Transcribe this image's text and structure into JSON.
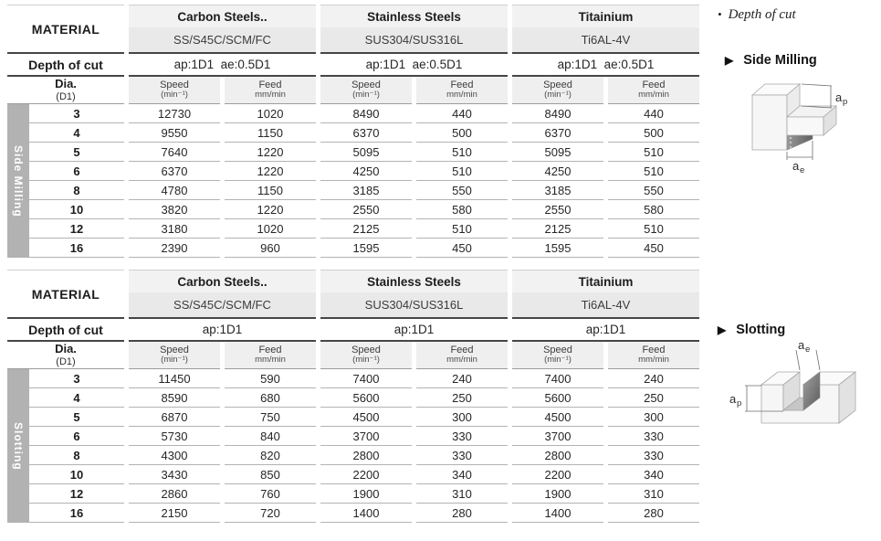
{
  "side_panel": {
    "note_bullet": "•",
    "note_text": "Depth of cut",
    "sections": [
      {
        "marker": "▶",
        "title": "Side Milling",
        "dims": {
          "ap_base": "a",
          "ap_sub": "p",
          "ae_base": "a",
          "ae_sub": "e"
        }
      },
      {
        "marker": "▶",
        "title": "Slotting",
        "dims": {
          "ap_base": "a",
          "ap_sub": "p",
          "ae_base": "a",
          "ae_sub": "e"
        }
      }
    ]
  },
  "tables": [
    {
      "section_label": "Side Milling",
      "material_label": "MATERIAL",
      "depth_label": "Depth of cut",
      "dia_label": "Dia.",
      "dia_sub": "(D1)",
      "speed_label": "Speed",
      "speed_unit": "(min⁻¹)",
      "feed_label": "Feed",
      "feed_unit": "mm/min",
      "groups": [
        {
          "name": "Carbon Steels..",
          "grade": "SS/S45C/SCM/FC",
          "depth": "ap:1D1  ae:0.5D1"
        },
        {
          "name": "Stainless Steels",
          "grade": "SUS304/SUS316L",
          "depth": "ap:1D1  ae:0.5D1"
        },
        {
          "name": "Titainium",
          "grade": "Ti6AL-4V",
          "depth": "ap:1D1  ae:0.5D1"
        }
      ],
      "rows": [
        {
          "dia": "3",
          "values": [
            "12730",
            "1020",
            "8490",
            "440",
            "8490",
            "440"
          ]
        },
        {
          "dia": "4",
          "values": [
            "9550",
            "1150",
            "6370",
            "500",
            "6370",
            "500"
          ]
        },
        {
          "dia": "5",
          "values": [
            "7640",
            "1220",
            "5095",
            "510",
            "5095",
            "510"
          ]
        },
        {
          "dia": "6",
          "values": [
            "6370",
            "1220",
            "4250",
            "510",
            "4250",
            "510"
          ]
        },
        {
          "dia": "8",
          "values": [
            "4780",
            "1150",
            "3185",
            "550",
            "3185",
            "550"
          ]
        },
        {
          "dia": "10",
          "values": [
            "3820",
            "1220",
            "2550",
            "580",
            "2550",
            "580"
          ]
        },
        {
          "dia": "12",
          "values": [
            "3180",
            "1020",
            "2125",
            "510",
            "2125",
            "510"
          ]
        },
        {
          "dia": "16",
          "values": [
            "2390",
            "960",
            "1595",
            "450",
            "1595",
            "450"
          ]
        }
      ]
    },
    {
      "section_label": "Slotting",
      "material_label": "MATERIAL",
      "depth_label": "Depth of cut",
      "dia_label": "Dia.",
      "dia_sub": "(D1)",
      "speed_label": "Speed",
      "speed_unit": "(min⁻¹)",
      "feed_label": "Feed",
      "feed_unit": "mm/min",
      "groups": [
        {
          "name": "Carbon Steels..",
          "grade": "SS/S45C/SCM/FC",
          "depth": "ap:1D1"
        },
        {
          "name": "Stainless Steels",
          "grade": "SUS304/SUS316L",
          "depth": "ap:1D1"
        },
        {
          "name": "Titainium",
          "grade": "Ti6AL-4V",
          "depth": "ap:1D1"
        }
      ],
      "rows": [
        {
          "dia": "3",
          "values": [
            "11450",
            "590",
            "7400",
            "240",
            "7400",
            "240"
          ]
        },
        {
          "dia": "4",
          "values": [
            "8590",
            "680",
            "5600",
            "250",
            "5600",
            "250"
          ]
        },
        {
          "dia": "5",
          "values": [
            "6870",
            "750",
            "4500",
            "300",
            "4500",
            "300"
          ]
        },
        {
          "dia": "6",
          "values": [
            "5730",
            "840",
            "3700",
            "330",
            "3700",
            "330"
          ]
        },
        {
          "dia": "8",
          "values": [
            "4300",
            "820",
            "2800",
            "330",
            "2800",
            "330"
          ]
        },
        {
          "dia": "10",
          "values": [
            "3430",
            "850",
            "2200",
            "340",
            "2200",
            "340"
          ]
        },
        {
          "dia": "12",
          "values": [
            "2860",
            "760",
            "1900",
            "310",
            "1900",
            "310"
          ]
        },
        {
          "dia": "16",
          "values": [
            "2150",
            "720",
            "1400",
            "280",
            "1400",
            "280"
          ]
        }
      ]
    }
  ]
}
